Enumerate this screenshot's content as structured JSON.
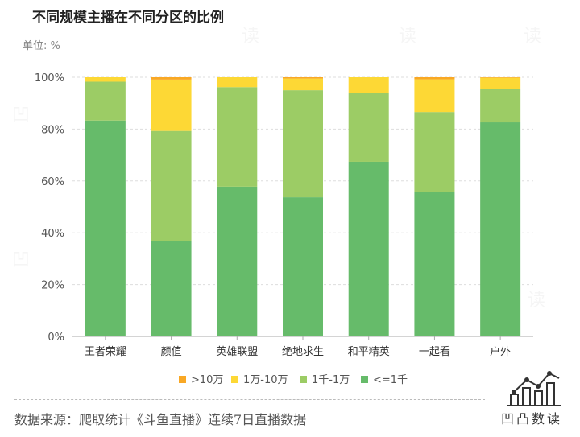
{
  "title": "不同规模主播在不同分区的比例",
  "unit_label": "单位: %",
  "source": "数据来源：爬取统计《斗鱼直播》连续7日直播数据",
  "brand": "凹凸数读",
  "chart_data": {
    "type": "bar",
    "stacked": true,
    "title": "不同规模主播在不同分区的比例",
    "ylabel": "单位: %",
    "ylim": [
      0,
      100
    ],
    "yticks": [
      "0%",
      "20%",
      "40%",
      "60%",
      "80%",
      "100%"
    ],
    "categories": [
      "王者荣耀",
      "颜值",
      "英雄联盟",
      "绝地求生",
      "和平精英",
      "一起看",
      "户外"
    ],
    "legend_position": "bottom",
    "grid": true,
    "series": [
      {
        "name": "<=1千",
        "color": "#66bb6a",
        "values": [
          83.3,
          36.7,
          57.8,
          53.7,
          67.4,
          55.6,
          82.6
        ]
      },
      {
        "name": "1千-1万",
        "color": "#9ccc65",
        "values": [
          15.0,
          42.6,
          38.4,
          41.3,
          26.4,
          31.0,
          13.0
        ]
      },
      {
        "name": "1万-10万",
        "color": "#fdd835",
        "values": [
          1.7,
          19.8,
          3.8,
          4.5,
          6.2,
          12.6,
          4.2
        ]
      },
      {
        "name": ">10万",
        "color": "#f9a825",
        "values": [
          0.0,
          0.9,
          0.0,
          0.5,
          0.0,
          0.8,
          0.2
        ]
      }
    ]
  }
}
